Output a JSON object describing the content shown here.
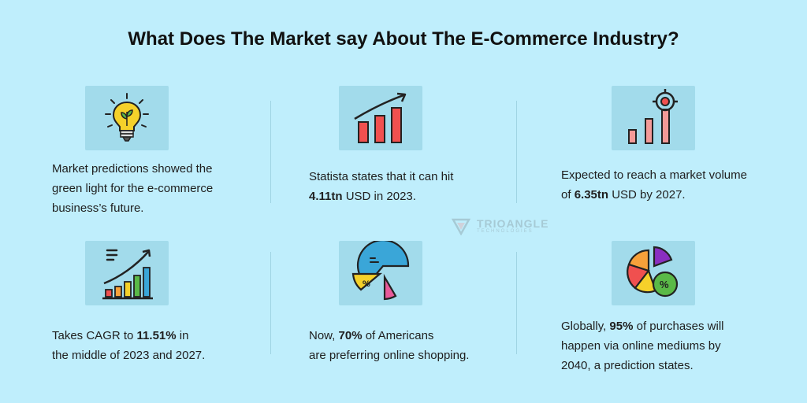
{
  "title": "What Does The Market say About The E-Commerce Industry?",
  "cards": [
    {
      "icon": "lightbulb-icon",
      "lines": [
        {
          "pre": "Market predictions showed the"
        },
        {
          "pre": "green light for the e-commerce"
        },
        {
          "pre": "business’s future."
        }
      ]
    },
    {
      "icon": "growth-chart-icon",
      "lines": [
        {
          "pre": "Statista states that it can hit"
        },
        {
          "bold": "4.11tn",
          "post": " USD in 2023."
        }
      ]
    },
    {
      "icon": "target-chart-icon",
      "lines": [
        {
          "pre": "Expected to reach a market volume"
        },
        {
          "pre": "of ",
          "bold": "6.35tn",
          "post": " USD by 2027."
        }
      ]
    },
    {
      "icon": "cagr-chart-icon",
      "lines": [
        {
          "pre": "Takes CAGR to ",
          "bold": "11.51%",
          "post": " in"
        },
        {
          "pre": "the middle of 2023 and 2027."
        }
      ]
    },
    {
      "icon": "pie-percent-icon",
      "lines": [
        {
          "pre": "Now, ",
          "bold": "70%",
          "post": " of Americans"
        },
        {
          "pre": "are preferring online shopping."
        }
      ]
    },
    {
      "icon": "pie-chart-icon",
      "lines": [
        {
          "pre": "Globally, ",
          "bold": "95%",
          "post": " of purchases will"
        },
        {
          "pre": "happen via online mediums by"
        },
        {
          "pre": "2040, a prediction states."
        }
      ]
    }
  ],
  "watermark": {
    "name": "TRIOANGLE",
    "sub": "TECHNOLOGIES"
  },
  "colors": {
    "background": "#bfeefc",
    "icon_box": "#a2dbeb",
    "accent_blue": "#3aa6d8",
    "accent_red": "#f0504f",
    "accent_yellow": "#f5d12a",
    "accent_green": "#5ab947",
    "accent_purple": "#8a2fc0",
    "accent_pink": "#e85a9a",
    "accent_orange": "#f7a13a"
  }
}
